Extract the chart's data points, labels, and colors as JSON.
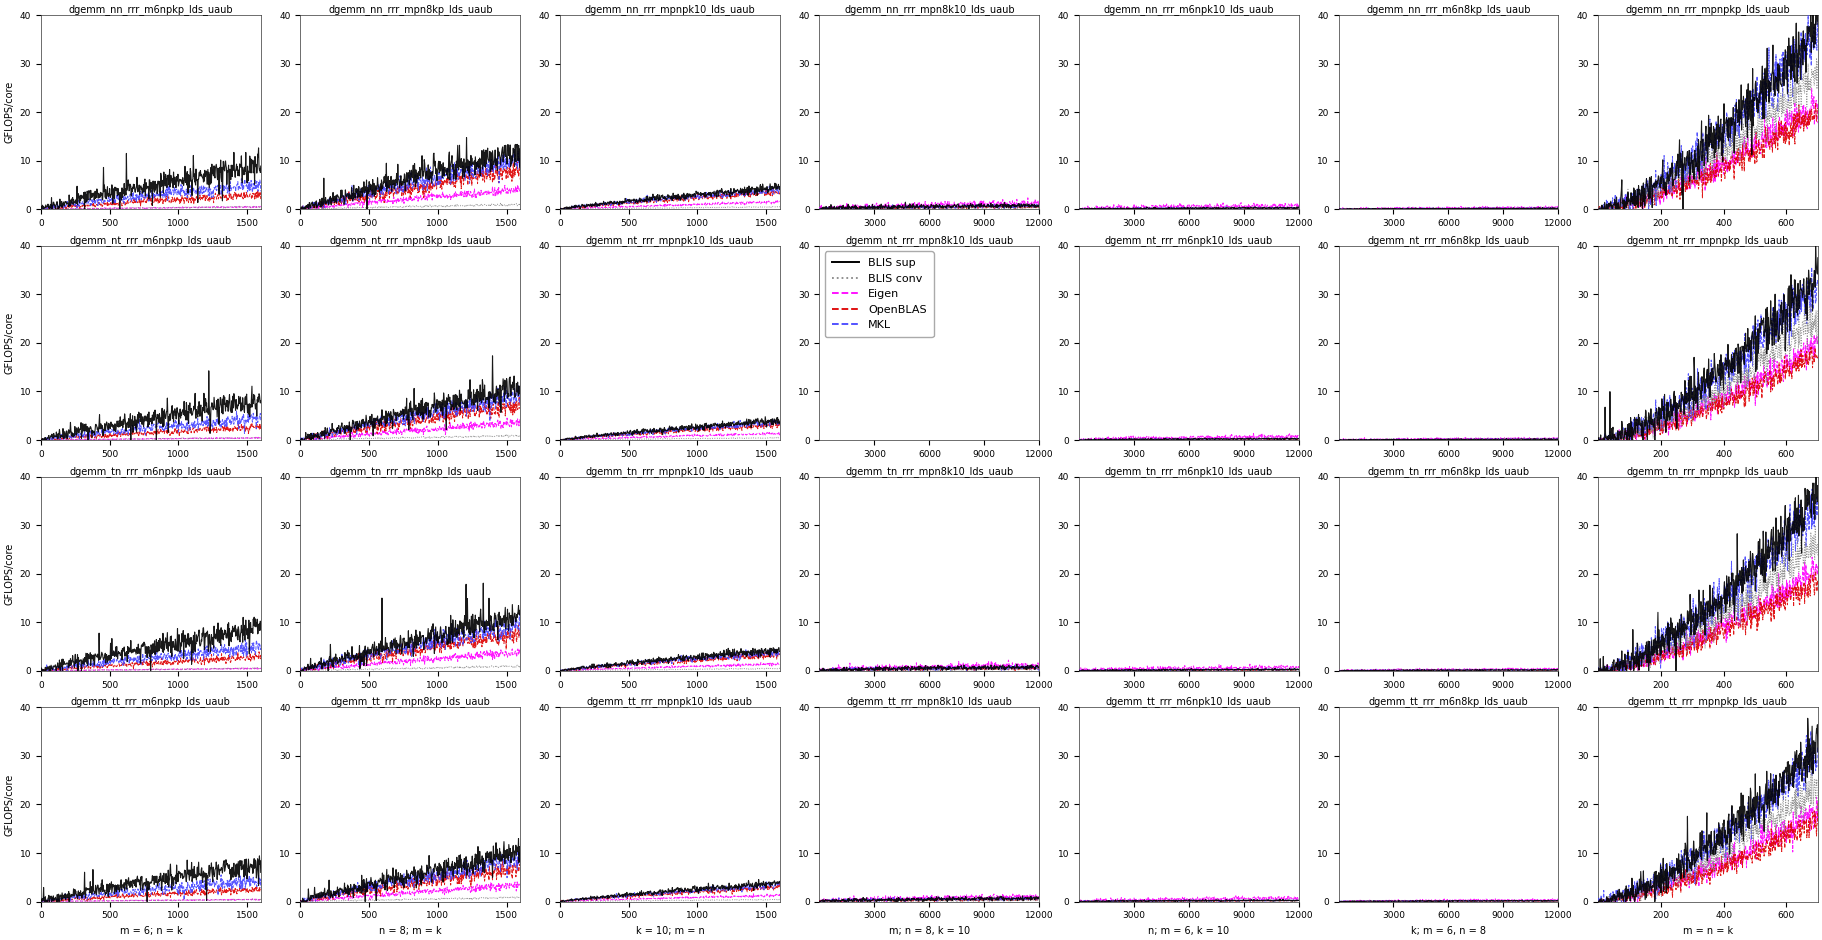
{
  "figsize": [
    18.22,
    9.4
  ],
  "row_labels": [
    "nn",
    "nt",
    "tn",
    "tt"
  ],
  "col_configs": [
    {
      "suffix": "m6npkp",
      "xlabel": "m = 6; n = k",
      "xmin": 0,
      "xmax": 1600,
      "xticks": [
        0,
        500,
        1000,
        1500
      ]
    },
    {
      "suffix": "mpn8kp",
      "xlabel": "n = 8; m = k",
      "xmin": 0,
      "xmax": 1600,
      "xticks": [
        0,
        500,
        1000,
        1500
      ]
    },
    {
      "suffix": "mpnpk10",
      "xlabel": "k = 10; m = n",
      "xmin": 0,
      "xmax": 1600,
      "xticks": [
        0,
        500,
        1000,
        1500
      ]
    },
    {
      "suffix": "mpn8k10",
      "xlabel": "m; n = 8, k = 10",
      "xmin": 0,
      "xmax": 12000,
      "xticks": [
        3000,
        6000,
        9000,
        12000
      ]
    },
    {
      "suffix": "m6npk10",
      "xlabel": "n; m = 6, k = 10",
      "xmin": 0,
      "xmax": 12000,
      "xticks": [
        3000,
        6000,
        9000,
        12000
      ]
    },
    {
      "suffix": "m6n8kp",
      "xlabel": "k; m = 6, n = 8",
      "xmin": 0,
      "xmax": 12000,
      "xticks": [
        3000,
        6000,
        9000,
        12000
      ]
    },
    {
      "suffix": "mpnpkp",
      "xlabel": "m = n = k",
      "xmin": 0,
      "xmax": 700,
      "xticks": [
        200,
        400,
        600
      ]
    }
  ],
  "col_title_templates": [
    "dgemm_{row}_rrr_m6npkp_lds_uaub",
    "dgemm_{row}_rrr_mpn8kp_lds_uaub",
    "dgemm_{row}_rrr_mpnpk10_lds_uaub",
    "dgemm_{row}_rrr_mpn8k10_lds_uaub",
    "dgemm_{row}_rrr_m6npk10_lds_uaub",
    "dgemm_{row}_rrr_m6n8kp_lds_uaub",
    "dgemm_{row}_rrr_mpnpkp_lds_uaub"
  ],
  "series": [
    {
      "label": "BLIS sup",
      "color": "#000000",
      "lw": 0.8,
      "ls": "-",
      "zorder": 5
    },
    {
      "label": "BLIS conv",
      "color": "#888888",
      "lw": 0.7,
      "ls": ":",
      "zorder": 4
    },
    {
      "label": "Eigen",
      "color": "#ff00ff",
      "lw": 0.7,
      "ls": "--",
      "zorder": 3
    },
    {
      "label": "OpenBLAS",
      "color": "#dd0000",
      "lw": 0.7,
      "ls": "--",
      "zorder": 3
    },
    {
      "label": "MKL",
      "color": "#4444ff",
      "lw": 0.7,
      "ls": "--",
      "zorder": 3
    }
  ],
  "ylim": [
    0,
    40
  ],
  "yticks": [
    0,
    10,
    20,
    30,
    40
  ],
  "ylabel": "GFLOPS/core",
  "legend_row": 1,
  "legend_col": 3,
  "background": "#ffffff",
  "title_fontsize": 7,
  "label_fontsize": 7,
  "tick_fontsize": 6.5
}
